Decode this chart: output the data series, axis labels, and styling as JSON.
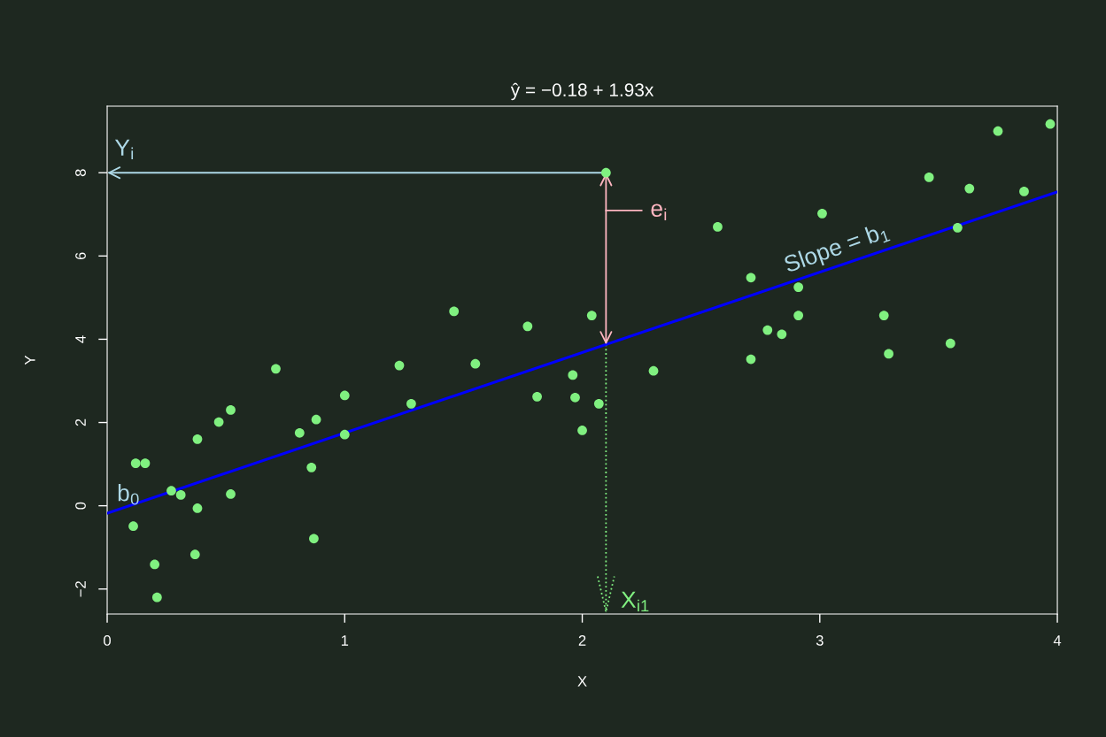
{
  "chart_data": {
    "type": "scatter",
    "title": "ŷ = −0.18 + 1.93x",
    "xlabel": "X",
    "ylabel": "Y",
    "xlim": [
      0,
      4
    ],
    "xticks": [
      0,
      1,
      2,
      3,
      4
    ],
    "ylim": [
      -2.6,
      9.6
    ],
    "yticks": [
      {
        "value": -2,
        "label": "−2"
      },
      0,
      2,
      4,
      6,
      8
    ],
    "grid": false,
    "legend": false,
    "series": [
      {
        "color": "#80f080",
        "x": [
          0.11,
          0.12,
          0.16,
          0.2,
          0.21,
          0.27,
          0.31,
          0.37,
          0.38,
          0.38,
          0.47,
          0.52,
          0.52,
          0.71,
          0.81,
          0.86,
          0.87,
          0.88,
          1.0,
          1.0,
          1.23,
          1.28,
          1.46,
          1.55,
          1.77,
          1.81,
          1.96,
          1.97,
          2.0,
          2.04,
          2.07,
          2.1,
          2.3,
          2.57,
          2.71,
          2.71,
          2.78,
          2.84,
          2.91,
          2.91,
          3.01,
          3.27,
          3.29,
          3.46,
          3.55,
          3.58,
          3.63,
          3.75,
          3.86,
          3.97
        ],
        "values": [
          -0.49,
          1.02,
          1.02,
          -1.41,
          -2.2,
          0.36,
          0.26,
          -1.17,
          -0.06,
          1.6,
          2.01,
          2.3,
          0.28,
          3.29,
          1.75,
          0.92,
          -0.79,
          2.07,
          2.65,
          1.71,
          3.37,
          2.45,
          4.67,
          3.41,
          4.31,
          2.62,
          3.14,
          2.6,
          1.81,
          4.57,
          2.45,
          8.0,
          3.24,
          6.7,
          5.48,
          3.52,
          4.22,
          4.12,
          5.25,
          4.57,
          7.02,
          4.57,
          3.65,
          7.89,
          3.9,
          6.68,
          7.62,
          9.0,
          7.55,
          9.17
        ]
      },
      {
        "type": "line",
        "color": "#0000ff",
        "x": [
          0,
          4
        ],
        "values": [
          -0.18,
          7.54
        ]
      }
    ],
    "annotations": [
      "Y$_{i}$",
      "e$_{i}$",
      "Slope = b$_{1}$",
      "b$_{0}$",
      {
        "text": "X$_{i1}$",
        "x": 2.1,
        "y": 3.87
      }
    ]
  }
}
